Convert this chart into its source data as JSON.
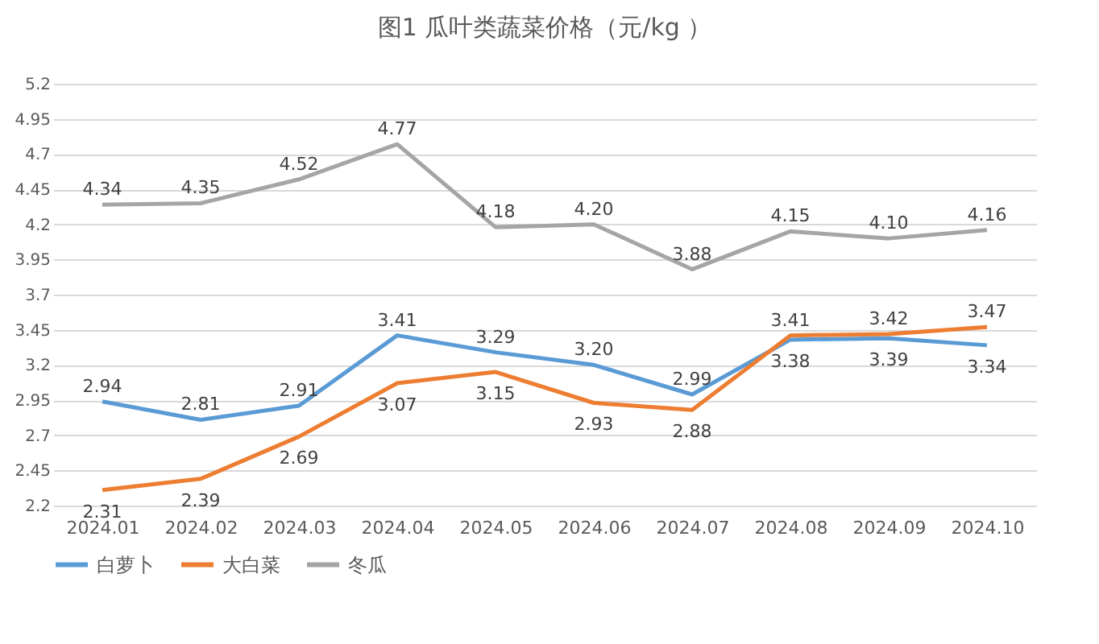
{
  "chart_data": {
    "type": "line",
    "title": "图1   瓜叶类蔬菜价格（元/kg ）",
    "categories": [
      "2024.01",
      "2024.02",
      "2024.03",
      "2024.04",
      "2024.05",
      "2024.06",
      "2024.07",
      "2024.08",
      "2024.09",
      "2024.10"
    ],
    "series": [
      {
        "name": "白萝卜",
        "color": "#5b9bd5",
        "values": [
          2.94,
          2.81,
          2.91,
          3.41,
          3.29,
          3.2,
          2.99,
          3.38,
          3.39,
          3.34
        ]
      },
      {
        "name": "大白菜",
        "color": "#ed7d31",
        "values": [
          2.31,
          2.39,
          2.69,
          3.07,
          3.15,
          2.93,
          2.88,
          3.41,
          3.42,
          3.47
        ]
      },
      {
        "name": "冬瓜",
        "color": "#a5a5a5",
        "values": [
          4.34,
          4.35,
          4.52,
          4.77,
          4.18,
          4.2,
          3.88,
          4.15,
          4.1,
          4.16
        ]
      }
    ],
    "value_labels": [
      [
        "2.94",
        "2.81",
        "2.91",
        "3.41",
        "3.29",
        "3.20",
        "2.99",
        "3.38",
        "3.39",
        "3.34"
      ],
      [
        "2.31",
        "2.39",
        "2.69",
        "3.07",
        "3.15",
        "2.93",
        "2.88",
        "3.41",
        "3.42",
        "3.47"
      ],
      [
        "4.34",
        "4.35",
        "4.52",
        "4.77",
        "4.18",
        "4.20",
        "3.88",
        "4.15",
        "4.10",
        "4.16"
      ]
    ],
    "ylim": [
      2.2,
      5.2
    ],
    "yticks": [
      2.2,
      2.45,
      2.7,
      2.95,
      3.2,
      3.45,
      3.7,
      3.95,
      4.2,
      4.45,
      4.7,
      4.95,
      5.2
    ],
    "grid": "y",
    "legend": "bottom",
    "marker": "none",
    "line_style": "solid"
  }
}
